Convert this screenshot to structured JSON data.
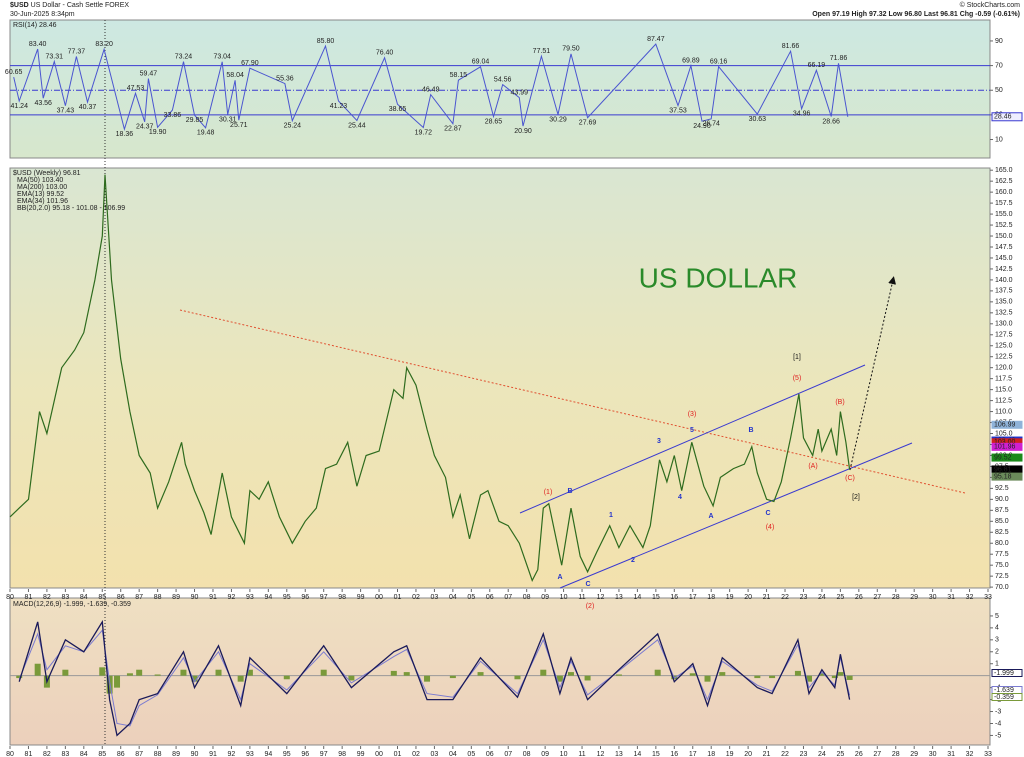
{
  "header": {
    "symbol": "$USD",
    "description": "US Dollar - Cash Settle FOREX",
    "date": "30-Jun-2025 8:34pm",
    "quote": "Open 97.19 High 97.32 Low 96.80 Last 96.81 Chg -0.59 (-0.61%)",
    "credit": "© StockCharts.com"
  },
  "chart_data": [
    {
      "type": "rsi",
      "legend": "RSI(14) 28.46",
      "xlim": [
        1980,
        2033
      ],
      "ylim": [
        -5,
        107
      ],
      "yticks": [
        10,
        30,
        50,
        70,
        90
      ],
      "levels": [
        70,
        50,
        30
      ],
      "x": [
        1980.2,
        1980.5,
        1981.5,
        1981.8,
        1982.4,
        1983.0,
        1983.6,
        1984.2,
        1985.1,
        1986.2,
        1986.8,
        1987.3,
        1987.5,
        1988.0,
        1988.8,
        1989.4,
        1990.0,
        1990.6,
        1991.5,
        1991.8,
        1992.2,
        1992.4,
        1993.0,
        1994.9,
        1995.3,
        1997.1,
        1997.8,
        1998.8,
        2000.3,
        2001.0,
        2002.4,
        2002.8,
        2004.0,
        2004.3,
        2005.5,
        2006.2,
        2006.7,
        2007.6,
        2007.8,
        2008.8,
        2009.7,
        2010.4,
        2011.3,
        2015.0,
        2016.2,
        2016.9,
        2017.5,
        2018.0,
        2018.4,
        2020.5,
        2022.3,
        2022.9,
        2023.7,
        2024.5,
        2024.9,
        2025.4
      ],
      "series": [
        {
          "color": "#4a55d0",
          "values": [
            60.65,
            41.24,
            83.4,
            43.56,
            73.31,
            37.43,
            77.37,
            40.37,
            83.2,
            18.36,
            47.53,
            24.37,
            59.47,
            19.9,
            33.86,
            73.24,
            29.85,
            19.48,
            73.04,
            30.31,
            58.04,
            25.71,
            67.9,
            55.36,
            25.24,
            85.8,
            41.23,
            25.44,
            76.4,
            38.65,
            19.72,
            46.49,
            22.87,
            58.15,
            69.04,
            28.65,
            54.56,
            43.99,
            20.9,
            77.51,
            30.29,
            79.5,
            27.69,
            87.47,
            37.53,
            69.89,
            24.9,
            26.74,
            69.16,
            30.63,
            81.66,
            34.96,
            66.19,
            28.66,
            71.86,
            28.46
          ],
          "value_labels": [
            "60.65",
            "41.24",
            "83.40",
            "43.56",
            "73.31",
            "37.43",
            "77.37",
            "40.37",
            "83.20",
            "18.36",
            "47.53",
            "24.37",
            "59.47",
            "19.90",
            "33.86",
            "73.24",
            "29.85",
            "19.48",
            "73.04",
            "30.31",
            "58.04",
            "25.71",
            "67.90",
            "55.36",
            "25.24",
            "85.80",
            "41.23",
            "25.44",
            "76.40",
            "38.65",
            "19.72",
            "46.49",
            "22.87",
            "58.15",
            "69.04",
            "28.65",
            "54.56",
            "43.99",
            "20.90",
            "77.51",
            "30.29",
            "79.50",
            "27.69",
            "87.47",
            "37.53",
            "69.89",
            "24.90",
            "26.74",
            "69.16",
            "30.63",
            "81.66",
            "34.96",
            "66.19",
            "28.66",
            "71.86",
            "28.46"
          ]
        }
      ]
    },
    {
      "type": "price",
      "title": "US DOLLAR",
      "xlim": [
        1980,
        2033
      ],
      "ylim": [
        69.8,
        165.5
      ],
      "indicators": [
        {
          "name": "MA(50) 103.40",
          "color": "#2233cc"
        },
        {
          "name": "MA(200) 103.00",
          "color": "#d02020"
        },
        {
          "name": "EMA(13) 99.52",
          "color": "#1a8a1a"
        },
        {
          "name": "EMA(34) 101.96",
          "color": "#d020d0"
        },
        {
          "name": "BB(20,2.0) 95.18 - 101.08 - 106.99",
          "color": "#6a8a5a"
        }
      ],
      "x": [
        1980.0,
        1980.5,
        1981.0,
        1981.6,
        1982.0,
        1982.8,
        1983.5,
        1984.0,
        1984.6,
        1985.0,
        1985.15,
        1985.5,
        1986.0,
        1986.5,
        1987.0,
        1987.6,
        1988.0,
        1988.6,
        1989.3,
        1989.5,
        1990.0,
        1990.5,
        1990.9,
        1991.5,
        1992.0,
        1992.7,
        1993.0,
        1993.5,
        1994.0,
        1994.6,
        1995.3,
        1996.0,
        1996.6,
        1997.1,
        1997.7,
        1998.3,
        1998.8,
        1999.3,
        2000.0,
        2000.8,
        2001.3,
        2001.5,
        2002.0,
        2002.6,
        2003.0,
        2003.6,
        2004.0,
        2004.4,
        2004.9,
        2005.5,
        2005.9,
        2006.5,
        2007.0,
        2007.6,
        2008.3,
        2008.6,
        2008.9,
        2009.2,
        2009.9,
        2010.4,
        2010.9,
        2011.3,
        2011.8,
        2012.5,
        2013.0,
        2013.6,
        2014.3,
        2014.7,
        2015.2,
        2015.6,
        2016.0,
        2016.4,
        2016.95,
        2017.6,
        2018.1,
        2018.5,
        2019.2,
        2019.8,
        2020.2,
        2020.5,
        2021.0,
        2021.4,
        2021.8,
        2022.3,
        2022.75,
        2023.0,
        2023.5,
        2023.8,
        2024.0,
        2024.5,
        2024.8,
        2025.0,
        2025.3,
        2025.5
      ],
      "series": [
        {
          "name": "$USD (Weekly) 96.81",
          "color": "#2e6b1e",
          "values": [
            86,
            88,
            90,
            110,
            105,
            120,
            124,
            128,
            140,
            150,
            164,
            140,
            122,
            110,
            100,
            96,
            88,
            94,
            103,
            98,
            92,
            87,
            82,
            96,
            86,
            80,
            92,
            90,
            94,
            86,
            80,
            85,
            88,
            97,
            98,
            103,
            93,
            100,
            101,
            115,
            113,
            120,
            116,
            106,
            100,
            95,
            86,
            91,
            81,
            91,
            92,
            85,
            84,
            80,
            71.5,
            74,
            88,
            89,
            75,
            88,
            77,
            73.5,
            78,
            84,
            79,
            84,
            79,
            84,
            99,
            94,
            100,
            92,
            103,
            93,
            88.5,
            95,
            97,
            98,
            102,
            96,
            90,
            89.5,
            94,
            104,
            114,
            104,
            100,
            106,
            101,
            106,
            100,
            110,
            103,
            96.81
          ]
        }
      ],
      "price_markers": [
        {
          "value": 106.99,
          "label": "106.99",
          "color": "#8fb3d9"
        },
        {
          "value": 103.4,
          "label": "103.40",
          "color": "#2233cc"
        },
        {
          "value": 103.0,
          "label": "103.00",
          "color": "#d02020"
        },
        {
          "value": 101.96,
          "label": "101.96",
          "color": "#d020d0"
        },
        {
          "value": 99.52,
          "label": "99.52",
          "color": "#1a8a1a"
        },
        {
          "value": 96.81,
          "label": "96.81",
          "color": "#000000"
        },
        {
          "value": 95.18,
          "label": "95.18",
          "color": "#6a8a5a"
        }
      ],
      "annotations": [
        {
          "text": "[1]",
          "color": "#111111"
        },
        {
          "text": "(5)",
          "color": "#e02020"
        },
        {
          "text": "(3)",
          "color": "#e02020"
        },
        {
          "text": "(1)",
          "color": "#e02020"
        },
        {
          "text": "(2)",
          "color": "#e02020"
        },
        {
          "text": "(4)",
          "color": "#e02020"
        },
        {
          "text": "(A)",
          "color": "#e02020"
        },
        {
          "text": "(B)",
          "color": "#e02020"
        },
        {
          "text": "(C)",
          "color": "#e02020"
        },
        {
          "text": "[2]",
          "color": "#111111"
        },
        {
          "text": "3",
          "color": "#2233cc"
        },
        {
          "text": "5",
          "color": "#2233cc"
        },
        {
          "text": "B",
          "color": "#2233cc"
        },
        {
          "text": "4",
          "color": "#2233cc"
        },
        {
          "text": "A",
          "color": "#2233cc"
        },
        {
          "text": "C",
          "color": "#2233cc"
        },
        {
          "text": "B",
          "color": "#2233cc"
        },
        {
          "text": "A",
          "color": "#2233cc"
        },
        {
          "text": "C",
          "color": "#2233cc"
        },
        {
          "text": "1",
          "color": "#2233cc"
        },
        {
          "text": "2",
          "color": "#2233cc"
        }
      ],
      "xticks": [
        {
          "value": 1980,
          "label": "80"
        },
        {
          "value": 1981,
          "label": "81"
        },
        {
          "value": 1982,
          "label": "82"
        },
        {
          "value": 1983,
          "label": "83"
        },
        {
          "value": 1984,
          "label": "84"
        },
        {
          "value": 1985,
          "label": "85"
        },
        {
          "value": 1986,
          "label": "86"
        },
        {
          "value": 1987,
          "label": "87"
        },
        {
          "value": 1988,
          "label": "88"
        },
        {
          "value": 1989,
          "label": "89"
        },
        {
          "value": 1990,
          "label": "90"
        },
        {
          "value": 1991,
          "label": "91"
        },
        {
          "value": 1992,
          "label": "92"
        },
        {
          "value": 1993,
          "label": "93"
        },
        {
          "value": 1994,
          "label": "94"
        },
        {
          "value": 1995,
          "label": "95"
        },
        {
          "value": 1996,
          "label": "96"
        },
        {
          "value": 1997,
          "label": "97"
        },
        {
          "value": 1998,
          "label": "98"
        },
        {
          "value": 1999,
          "label": "99"
        },
        {
          "value": 2000,
          "label": "00"
        },
        {
          "value": 2001,
          "label": "01"
        },
        {
          "value": 2002,
          "label": "02"
        },
        {
          "value": 2003,
          "label": "03"
        },
        {
          "value": 2004,
          "label": "04"
        },
        {
          "value": 2005,
          "label": "05"
        },
        {
          "value": 2006,
          "label": "06"
        },
        {
          "value": 2007,
          "label": "07"
        },
        {
          "value": 2008,
          "label": "08"
        },
        {
          "value": 2009,
          "label": "09"
        },
        {
          "value": 2010,
          "label": "10"
        },
        {
          "value": 2011,
          "label": "11"
        },
        {
          "value": 2012,
          "label": "12"
        },
        {
          "value": 2013,
          "label": "13"
        },
        {
          "value": 2014,
          "label": "14"
        },
        {
          "value": 2015,
          "label": "15"
        },
        {
          "value": 2016,
          "label": "16"
        },
        {
          "value": 2017,
          "label": "17"
        },
        {
          "value": 2018,
          "label": "18"
        },
        {
          "value": 2019,
          "label": "19"
        },
        {
          "value": 2020,
          "label": "20"
        },
        {
          "value": 2021,
          "label": "21"
        },
        {
          "value": 2022,
          "label": "22"
        },
        {
          "value": 2023,
          "label": "23"
        },
        {
          "value": 2024,
          "label": "24"
        },
        {
          "value": 2025,
          "label": "25"
        },
        {
          "value": 2026,
          "label": "26"
        },
        {
          "value": 2027,
          "label": "27"
        },
        {
          "value": 2028,
          "label": "28"
        },
        {
          "value": 2029,
          "label": "29"
        },
        {
          "value": 2030,
          "label": "30"
        },
        {
          "value": 2031,
          "label": "31"
        },
        {
          "value": 2032,
          "label": "32"
        },
        {
          "value": 2033,
          "label": "33"
        }
      ],
      "yticks": [
        {
          "value": 70,
          "label": "70.0"
        },
        72.5,
        {
          "value": 75,
          "label": "75.0"
        },
        77.5,
        {
          "value": 80,
          "label": "80.0"
        },
        82.5,
        {
          "value": 85,
          "label": "85.0"
        },
        87.5,
        {
          "value": 90,
          "label": "90.0"
        },
        92.5,
        {
          "value": 95,
          "label": "95.0"
        },
        97.5,
        {
          "value": 100,
          "label": "100.0"
        },
        102.5,
        {
          "value": 105,
          "label": "105.0"
        },
        107.5,
        {
          "value": 110,
          "label": "110.0"
        },
        112.5,
        {
          "value": 115,
          "label": "115.0"
        },
        117.5,
        {
          "value": 120,
          "label": "120.0"
        },
        122.5,
        {
          "value": 125,
          "label": "125.0"
        },
        127.5,
        {
          "value": 130,
          "label": "130.0"
        },
        132.5,
        {
          "value": 135,
          "label": "135.0"
        },
        137.5,
        {
          "value": 140,
          "label": "140.0"
        },
        142.5,
        {
          "value": 145,
          "label": "145.0"
        },
        147.5,
        {
          "value": 150,
          "label": "150.0"
        },
        152.5,
        {
          "value": 155,
          "label": "155.0"
        },
        157.5,
        {
          "value": 160,
          "label": "160.0"
        },
        162.5,
        {
          "value": 165,
          "label": "165.0"
        }
      ]
    },
    {
      "type": "macd",
      "legend": "MACD(12,26,9) -1.999, -1.639, -0.359",
      "xlim": [
        1980,
        2033
      ],
      "ylim": [
        -5.8,
        6.5
      ],
      "yticks": [
        -5,
        -4,
        -3,
        -2,
        -1,
        1,
        2,
        3,
        4,
        5
      ],
      "x": [
        1980.5,
        1981.5,
        1982.0,
        1983.0,
        1984.0,
        1985.0,
        1985.4,
        1985.8,
        1986.5,
        1987.0,
        1988.0,
        1989.4,
        1990.0,
        1991.3,
        1992.5,
        1993.0,
        1995.0,
        1997.0,
        1998.5,
        2000.8,
        2001.5,
        2002.6,
        2004.0,
        2005.5,
        2007.5,
        2008.9,
        2009.8,
        2010.4,
        2011.3,
        2013.0,
        2015.1,
        2016.0,
        2017.0,
        2017.8,
        2018.6,
        2020.5,
        2021.3,
        2022.7,
        2023.3,
        2024.0,
        2024.7,
        2025.0,
        2025.5
      ],
      "series": [
        {
          "color": "#1a1a5a",
          "values": [
            -0.5,
            4.5,
            -0.5,
            3,
            2,
            4.5,
            -2,
            -5,
            -4,
            -2,
            -1.5,
            2,
            -1,
            2.5,
            -2.5,
            1.5,
            -1.5,
            2.5,
            -1,
            2,
            2.5,
            -2,
            -2,
            1.5,
            -1.8,
            3.5,
            -1.5,
            1.5,
            -2,
            0.5,
            3.5,
            -0.5,
            1,
            -2.5,
            1.5,
            -1,
            -1.5,
            3,
            -1.5,
            0.5,
            -1,
            1.8,
            -1.999
          ]
        },
        {
          "color": "#7a7ad0",
          "values": [
            -0.3,
            3.5,
            0.5,
            2.5,
            2,
            3.8,
            -0.5,
            -4,
            -4.2,
            -2.5,
            -1.6,
            1.5,
            -0.5,
            2,
            -2,
            1,
            -1.2,
            2,
            -0.6,
            1.6,
            2.2,
            -1.5,
            -1.8,
            1.2,
            -1.5,
            3,
            -1,
            1.2,
            -1.6,
            0.4,
            3,
            -0.2,
            0.8,
            -2,
            1.2,
            -0.8,
            -1.3,
            2.6,
            -1,
            0.3,
            -0.8,
            1.5,
            -1.639
          ]
        },
        {
          "color": "#7a9a3a",
          "values": [
            -0.2,
            1,
            -1,
            0.5,
            0,
            0.7,
            -1.5,
            -1,
            0.2,
            0.5,
            0.1,
            0.5,
            -0.5,
            0.5,
            -0.5,
            0.5,
            -0.3,
            0.5,
            -0.4,
            0.4,
            0.3,
            -0.5,
            -0.2,
            0.3,
            -0.3,
            0.5,
            -0.5,
            0.3,
            -0.4,
            0.1,
            0.5,
            -0.3,
            0.2,
            -0.5,
            0.3,
            -0.2,
            -0.2,
            0.4,
            -0.5,
            0.2,
            -0.2,
            0.3,
            -0.359
          ]
        }
      ]
    }
  ]
}
